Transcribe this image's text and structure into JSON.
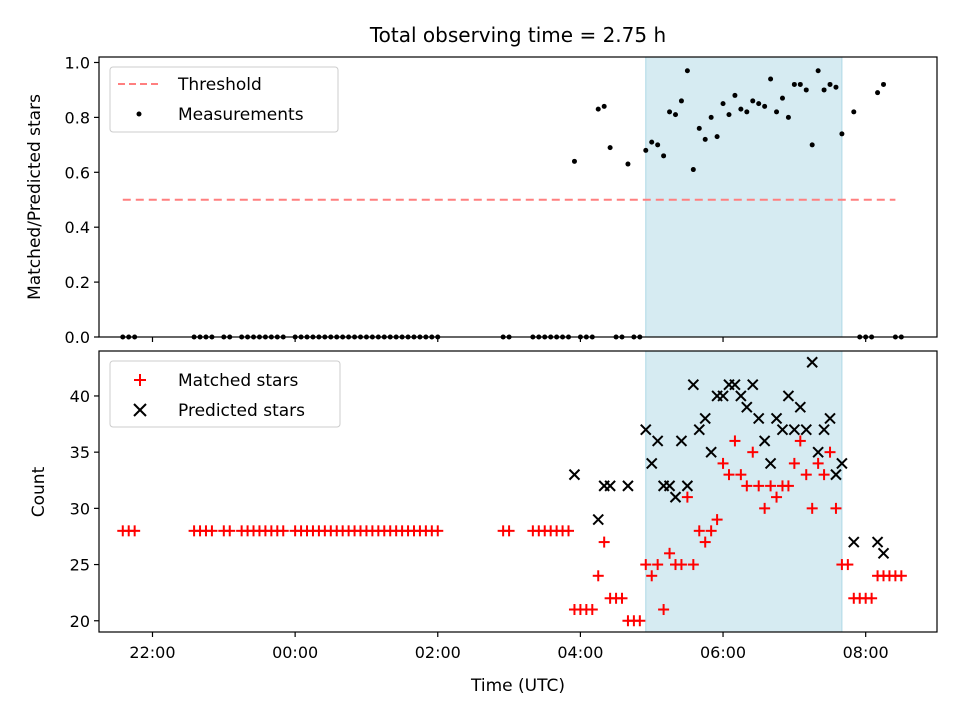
{
  "chart_data": [
    {
      "type": "scatter",
      "title": "Total observing time = 2.75 h",
      "xlabel": "",
      "ylabel": "Matched/Predicted stars",
      "ylim": [
        0,
        1.02
      ],
      "yticks": [
        "0.0",
        "0.2",
        "0.4",
        "0.6",
        "0.8",
        "1.0"
      ],
      "legend": {
        "placement": "top-left",
        "entries": [
          "Threshold",
          "Measurements"
        ]
      },
      "highlight_span": {
        "x": [
          "04:55",
          "07:40"
        ],
        "color": "#add8e6"
      },
      "series": [
        {
          "name": "Threshold",
          "style": "dashed-line",
          "color": "#ff7f7f",
          "x": [
            "21:35",
            "08:25"
          ],
          "y": [
            0.5,
            0.5
          ]
        },
        {
          "name": "Measurements",
          "style": "points",
          "color": "#000000",
          "points": [
            [
              "21:35",
              0
            ],
            [
              "21:40",
              0
            ],
            [
              "21:45",
              0
            ],
            [
              "22:35",
              0
            ],
            [
              "22:40",
              0
            ],
            [
              "22:45",
              0
            ],
            [
              "22:50",
              0
            ],
            [
              "23:00",
              0
            ],
            [
              "23:05",
              0
            ],
            [
              "23:15",
              0
            ],
            [
              "23:20",
              0
            ],
            [
              "23:25",
              0
            ],
            [
              "23:30",
              0
            ],
            [
              "23:35",
              0
            ],
            [
              "23:40",
              0
            ],
            [
              "23:45",
              0
            ],
            [
              "23:50",
              0
            ],
            [
              "00:00",
              0
            ],
            [
              "00:05",
              0
            ],
            [
              "00:10",
              0
            ],
            [
              "00:15",
              0
            ],
            [
              "00:20",
              0
            ],
            [
              "00:25",
              0
            ],
            [
              "00:30",
              0
            ],
            [
              "00:35",
              0
            ],
            [
              "00:40",
              0
            ],
            [
              "00:45",
              0
            ],
            [
              "00:50",
              0
            ],
            [
              "00:55",
              0
            ],
            [
              "01:00",
              0
            ],
            [
              "01:05",
              0
            ],
            [
              "01:10",
              0
            ],
            [
              "01:15",
              0
            ],
            [
              "01:20",
              0
            ],
            [
              "01:25",
              0
            ],
            [
              "01:30",
              0
            ],
            [
              "01:35",
              0
            ],
            [
              "01:40",
              0
            ],
            [
              "01:45",
              0
            ],
            [
              "01:50",
              0
            ],
            [
              "01:55",
              0
            ],
            [
              "02:00",
              0
            ],
            [
              "02:55",
              0
            ],
            [
              "03:00",
              0
            ],
            [
              "03:20",
              0
            ],
            [
              "03:25",
              0
            ],
            [
              "03:30",
              0
            ],
            [
              "03:35",
              0
            ],
            [
              "03:40",
              0
            ],
            [
              "03:45",
              0
            ],
            [
              "03:50",
              0
            ],
            [
              "03:55",
              0.64
            ],
            [
              "04:00",
              0
            ],
            [
              "04:05",
              0
            ],
            [
              "04:10",
              0
            ],
            [
              "04:15",
              0.83
            ],
            [
              "04:20",
              0.84
            ],
            [
              "04:25",
              0.69
            ],
            [
              "04:30",
              0
            ],
            [
              "04:35",
              0
            ],
            [
              "04:40",
              0.63
            ],
            [
              "04:45",
              0
            ],
            [
              "04:50",
              0
            ],
            [
              "04:55",
              0.68
            ],
            [
              "05:00",
              0.71
            ],
            [
              "05:05",
              0.7
            ],
            [
              "05:10",
              0.66
            ],
            [
              "05:15",
              0.82
            ],
            [
              "05:20",
              0.81
            ],
            [
              "05:25",
              0.86
            ],
            [
              "05:30",
              0.97
            ],
            [
              "05:35",
              0.61
            ],
            [
              "05:40",
              0.76
            ],
            [
              "05:45",
              0.72
            ],
            [
              "05:50",
              0.8
            ],
            [
              "05:55",
              0.73
            ],
            [
              "06:00",
              0.85
            ],
            [
              "06:05",
              0.81
            ],
            [
              "06:10",
              0.88
            ],
            [
              "06:15",
              0.83
            ],
            [
              "06:20",
              0.82
            ],
            [
              "06:25",
              0.86
            ],
            [
              "06:30",
              0.85
            ],
            [
              "06:35",
              0.84
            ],
            [
              "06:40",
              0.94
            ],
            [
              "06:45",
              0.82
            ],
            [
              "06:50",
              0.87
            ],
            [
              "06:55",
              0.8
            ],
            [
              "07:00",
              0.92
            ],
            [
              "07:05",
              0.92
            ],
            [
              "07:10",
              0.9
            ],
            [
              "07:15",
              0.7
            ],
            [
              "07:20",
              0.97
            ],
            [
              "07:25",
              0.9
            ],
            [
              "07:30",
              0.92
            ],
            [
              "07:35",
              0.91
            ],
            [
              "07:40",
              0.74
            ],
            [
              "07:50",
              0.82
            ],
            [
              "07:55",
              0
            ],
            [
              "08:00",
              0
            ],
            [
              "08:05",
              0
            ],
            [
              "08:10",
              0.89
            ],
            [
              "08:15",
              0.92
            ],
            [
              "08:25",
              0
            ],
            [
              "08:30",
              0
            ]
          ]
        }
      ]
    },
    {
      "type": "scatter",
      "title": "",
      "xlabel": "Time (UTC)",
      "ylabel": "Count",
      "ylim": [
        19,
        44
      ],
      "yticks": [
        "20",
        "25",
        "30",
        "35",
        "40"
      ],
      "xticks": [
        "22:00",
        "00:00",
        "02:00",
        "04:00",
        "06:00",
        "08:00"
      ],
      "legend": {
        "placement": "top-left",
        "entries": [
          "Matched stars",
          "Predicted stars"
        ]
      },
      "highlight_span": {
        "x": [
          "04:55",
          "07:40"
        ],
        "color": "#add8e6"
      },
      "series": [
        {
          "name": "Matched stars",
          "marker": "+",
          "color": "#ff0000",
          "points": [
            [
              "21:35",
              28
            ],
            [
              "21:40",
              28
            ],
            [
              "21:45",
              28
            ],
            [
              "22:35",
              28
            ],
            [
              "22:40",
              28
            ],
            [
              "22:45",
              28
            ],
            [
              "22:50",
              28
            ],
            [
              "23:00",
              28
            ],
            [
              "23:05",
              28
            ],
            [
              "23:15",
              28
            ],
            [
              "23:20",
              28
            ],
            [
              "23:25",
              28
            ],
            [
              "23:30",
              28
            ],
            [
              "23:35",
              28
            ],
            [
              "23:40",
              28
            ],
            [
              "23:45",
              28
            ],
            [
              "23:50",
              28
            ],
            [
              "00:00",
              28
            ],
            [
              "00:05",
              28
            ],
            [
              "00:10",
              28
            ],
            [
              "00:15",
              28
            ],
            [
              "00:20",
              28
            ],
            [
              "00:25",
              28
            ],
            [
              "00:30",
              28
            ],
            [
              "00:35",
              28
            ],
            [
              "00:40",
              28
            ],
            [
              "00:45",
              28
            ],
            [
              "00:50",
              28
            ],
            [
              "00:55",
              28
            ],
            [
              "01:00",
              28
            ],
            [
              "01:05",
              28
            ],
            [
              "01:10",
              28
            ],
            [
              "01:15",
              28
            ],
            [
              "01:20",
              28
            ],
            [
              "01:25",
              28
            ],
            [
              "01:30",
              28
            ],
            [
              "01:35",
              28
            ],
            [
              "01:40",
              28
            ],
            [
              "01:45",
              28
            ],
            [
              "01:50",
              28
            ],
            [
              "01:55",
              28
            ],
            [
              "02:00",
              28
            ],
            [
              "02:55",
              28
            ],
            [
              "03:00",
              28
            ],
            [
              "03:20",
              28
            ],
            [
              "03:25",
              28
            ],
            [
              "03:30",
              28
            ],
            [
              "03:35",
              28
            ],
            [
              "03:40",
              28
            ],
            [
              "03:45",
              28
            ],
            [
              "03:50",
              28
            ],
            [
              "03:55",
              21
            ],
            [
              "04:00",
              21
            ],
            [
              "04:05",
              21
            ],
            [
              "04:10",
              21
            ],
            [
              "04:15",
              24
            ],
            [
              "04:20",
              27
            ],
            [
              "04:25",
              22
            ],
            [
              "04:30",
              22
            ],
            [
              "04:35",
              22
            ],
            [
              "04:40",
              20
            ],
            [
              "04:45",
              20
            ],
            [
              "04:50",
              20
            ],
            [
              "04:55",
              25
            ],
            [
              "05:00",
              24
            ],
            [
              "05:05",
              25
            ],
            [
              "05:10",
              21
            ],
            [
              "05:15",
              26
            ],
            [
              "05:20",
              25
            ],
            [
              "05:25",
              25
            ],
            [
              "05:30",
              31
            ],
            [
              "05:35",
              25
            ],
            [
              "05:40",
              28
            ],
            [
              "05:45",
              27
            ],
            [
              "05:50",
              28
            ],
            [
              "05:55",
              29
            ],
            [
              "06:00",
              34
            ],
            [
              "06:05",
              33
            ],
            [
              "06:10",
              36
            ],
            [
              "06:15",
              33
            ],
            [
              "06:20",
              32
            ],
            [
              "06:25",
              35
            ],
            [
              "06:30",
              32
            ],
            [
              "06:35",
              30
            ],
            [
              "06:40",
              32
            ],
            [
              "06:45",
              31
            ],
            [
              "06:50",
              32
            ],
            [
              "06:55",
              32
            ],
            [
              "07:00",
              34
            ],
            [
              "07:05",
              36
            ],
            [
              "07:10",
              33
            ],
            [
              "07:15",
              30
            ],
            [
              "07:20",
              34
            ],
            [
              "07:25",
              33
            ],
            [
              "07:30",
              35
            ],
            [
              "07:35",
              30
            ],
            [
              "07:40",
              25
            ],
            [
              "07:45",
              25
            ],
            [
              "07:50",
              22
            ],
            [
              "07:55",
              22
            ],
            [
              "08:00",
              22
            ],
            [
              "08:05",
              22
            ],
            [
              "08:10",
              24
            ],
            [
              "08:15",
              24
            ],
            [
              "08:20",
              24
            ],
            [
              "08:25",
              24
            ],
            [
              "08:30",
              24
            ]
          ]
        },
        {
          "name": "Predicted stars",
          "marker": "x",
          "color": "#000000",
          "points": [
            [
              "03:55",
              33
            ],
            [
              "04:15",
              29
            ],
            [
              "04:20",
              32
            ],
            [
              "04:25",
              32
            ],
            [
              "04:40",
              32
            ],
            [
              "04:55",
              37
            ],
            [
              "05:00",
              34
            ],
            [
              "05:05",
              36
            ],
            [
              "05:10",
              32
            ],
            [
              "05:15",
              32
            ],
            [
              "05:20",
              31
            ],
            [
              "05:25",
              36
            ],
            [
              "05:30",
              32
            ],
            [
              "05:35",
              41
            ],
            [
              "05:40",
              37
            ],
            [
              "05:45",
              38
            ],
            [
              "05:50",
              35
            ],
            [
              "05:55",
              40
            ],
            [
              "06:00",
              40
            ],
            [
              "06:05",
              41
            ],
            [
              "06:10",
              41
            ],
            [
              "06:15",
              40
            ],
            [
              "06:20",
              39
            ],
            [
              "06:25",
              41
            ],
            [
              "06:30",
              38
            ],
            [
              "06:35",
              36
            ],
            [
              "06:40",
              34
            ],
            [
              "06:45",
              38
            ],
            [
              "06:50",
              37
            ],
            [
              "06:55",
              40
            ],
            [
              "07:00",
              37
            ],
            [
              "07:05",
              39
            ],
            [
              "07:10",
              37
            ],
            [
              "07:15",
              43
            ],
            [
              "07:20",
              35
            ],
            [
              "07:25",
              37
            ],
            [
              "07:30",
              38
            ],
            [
              "07:35",
              33
            ],
            [
              "07:40",
              34
            ],
            [
              "07:50",
              27
            ],
            [
              "08:10",
              27
            ],
            [
              "08:15",
              26
            ]
          ]
        }
      ]
    }
  ]
}
